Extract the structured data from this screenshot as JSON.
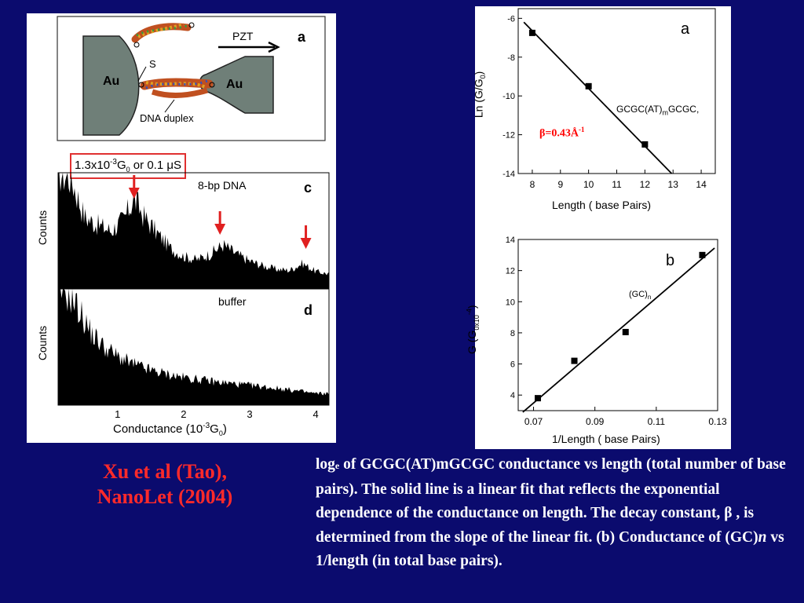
{
  "figure": {
    "schematic": {
      "panel_letter": "a",
      "pzt_label": "PZT",
      "electrode_left": "Au",
      "electrode_right": "Au",
      "s_label": "S",
      "duplex_label": "DNA duplex"
    },
    "threshold_box": {
      "prefix": "1.3x10",
      "exponent": "-3",
      "unit": "G",
      "unit_sub": "0",
      "suffix": " or 0.1 ",
      "mu": "μ",
      "suffix_unit": "S"
    }
  },
  "chart_data": [
    {
      "id": "histogram-c",
      "type": "area",
      "panel_letter": "c",
      "annotation": "8-bp DNA",
      "ylabel": "Counts",
      "xlim": [
        0.1,
        4.2
      ],
      "peaks_x": [
        1.25,
        2.55,
        3.85
      ],
      "envelope": {
        "x": [
          0.1,
          0.3,
          0.5,
          0.7,
          0.9,
          1.1,
          1.25,
          1.4,
          1.6,
          1.8,
          2.0,
          2.2,
          2.4,
          2.6,
          2.8,
          3.0,
          3.2,
          3.4,
          3.6,
          3.8,
          4.0,
          4.2
        ],
        "y": [
          1.0,
          0.95,
          0.62,
          0.55,
          0.5,
          0.6,
          0.78,
          0.62,
          0.48,
          0.35,
          0.28,
          0.25,
          0.3,
          0.38,
          0.3,
          0.24,
          0.2,
          0.17,
          0.16,
          0.22,
          0.15,
          0.13
        ]
      }
    },
    {
      "id": "histogram-d",
      "type": "area",
      "panel_letter": "d",
      "annotation": "buffer",
      "ylabel": "Counts",
      "xlabel": "Conductance (10",
      "xlabel_exp": "-3",
      "xlabel_unit": "G",
      "xlabel_unit_sub": "0",
      "xlabel_close": ")",
      "xlim": [
        0.1,
        4.2
      ],
      "xticks": [
        "1",
        "2",
        "3",
        "4"
      ],
      "envelope": {
        "x": [
          0.1,
          0.2,
          0.3,
          0.45,
          0.6,
          0.8,
          1.0,
          1.2,
          1.5,
          1.8,
          2.1,
          2.5,
          3.0,
          3.5,
          4.0,
          4.2
        ],
        "y": [
          1.0,
          0.98,
          0.93,
          0.78,
          0.62,
          0.5,
          0.42,
          0.36,
          0.3,
          0.26,
          0.23,
          0.2,
          0.17,
          0.14,
          0.1,
          0.1
        ]
      }
    },
    {
      "id": "ln-conductance-vs-length",
      "type": "scatter",
      "panel_letter": "a",
      "xlabel": "Length",
      "xlabel_units": "( base Pairs)",
      "ylabel": "Ln (G/G",
      "ylabel_sub": "0",
      "ylabel_close": ")",
      "xlim": [
        7.5,
        14.5
      ],
      "ylim": [
        -14,
        -5.5
      ],
      "xticks": [
        8,
        9,
        10,
        11,
        12,
        13,
        14
      ],
      "yticks": [
        -6,
        -8,
        -10,
        -12,
        -14
      ],
      "points": [
        {
          "x": 8,
          "y": -6.75
        },
        {
          "x": 10,
          "y": -9.5
        },
        {
          "x": 12,
          "y": -12.5
        }
      ],
      "fit": {
        "x": [
          7.7,
          12.95
        ],
        "y": [
          -6.2,
          -14
        ]
      },
      "series_label": "GCGC(AT)",
      "series_label_sub": "m",
      "series_label_end": "GCGC,",
      "beta_label": "β=0.43Å",
      "beta_exp": "-1",
      "beta_color": "#ff0000"
    },
    {
      "id": "conductance-vs-inverse-length",
      "type": "scatter",
      "panel_letter": "b",
      "xlabel": "1/Length",
      "xlabel_units": "( base Pairs)",
      "ylabel": "G (G",
      "ylabel_sub": "0x10",
      "ylabel_exp": "-4",
      "ylabel_close": ")",
      "xlim": [
        0.065,
        0.13
      ],
      "ylim": [
        3,
        14
      ],
      "xticks": [
        "0.07",
        "0.09",
        "0.11",
        "0.13"
      ],
      "yticks": [
        4,
        6,
        8,
        10,
        12,
        14
      ],
      "points": [
        {
          "x": 0.0714,
          "y": 3.8
        },
        {
          "x": 0.0833,
          "y": 6.2
        },
        {
          "x": 0.1,
          "y": 8.05
        },
        {
          "x": 0.125,
          "y": 13.0
        }
      ],
      "fit": {
        "x": [
          0.0665,
          0.129
        ],
        "y": [
          2.9,
          13.45
        ]
      },
      "series_label": "(GC)",
      "series_label_sub": "n"
    }
  ],
  "citation": {
    "line1": "Xu et al (Tao),",
    "line2": "NanoLet (2004)"
  },
  "caption": {
    "log": "log",
    "log_sub": "e",
    "part1": " of GCGC(AT)mGCGC conductance vs length (total number of base pairs). The solid line is a linear fit that reflects the exponential dependence of the conductance on length. The decay constant, ",
    "beta": "β",
    "part2": " , is determined from the slope of the linear fit. (b) Conductance of (GC)",
    "n": "n",
    "part3": " vs 1/length (in total base pairs)."
  }
}
